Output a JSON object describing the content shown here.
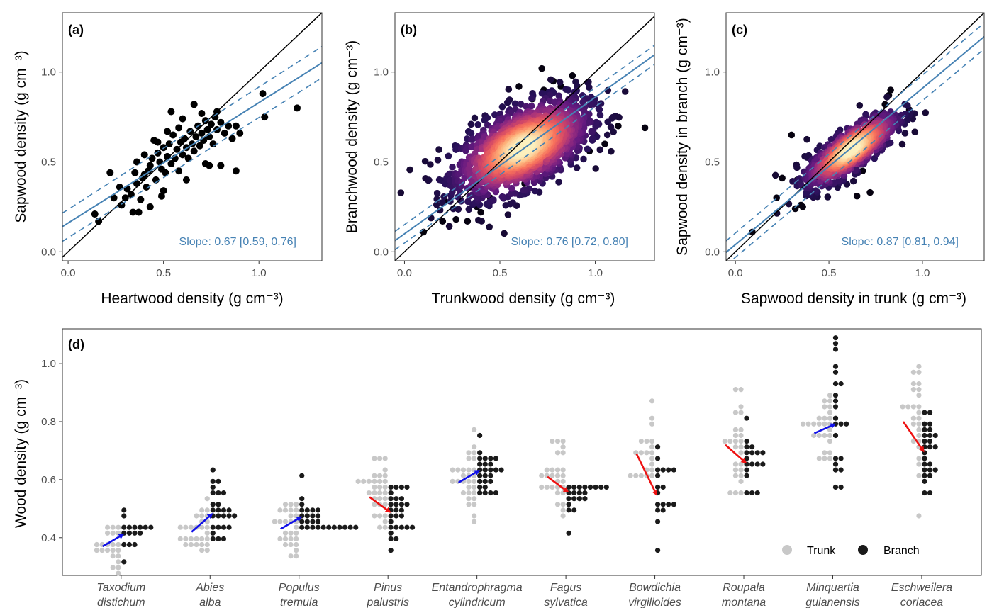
{
  "chart_data": [
    {
      "type": "scatter",
      "panel_label": "(a)",
      "xlabel": "Heartwood density (g cm⁻³)",
      "ylabel": "Sapwood density (g cm⁻³)",
      "xlim": [
        -0.03,
        1.33
      ],
      "ylim": [
        -0.05,
        1.33
      ],
      "xticks": [
        "0.0",
        "0.5",
        "1.0"
      ],
      "yticks": [
        "0.0",
        "0.5",
        "1.0"
      ],
      "annotation": "Slope: 0.67 [0.59, 0.76]",
      "fit": {
        "slope": 0.67,
        "ci": [
          0.59,
          0.76
        ],
        "intercept": 0.16
      },
      "identity_line": true,
      "points": [
        [
          0.16,
          0.17
        ],
        [
          0.27,
          0.36
        ],
        [
          0.3,
          0.3
        ],
        [
          0.31,
          0.35
        ],
        [
          0.33,
          0.32
        ],
        [
          0.35,
          0.44
        ],
        [
          0.36,
          0.38
        ],
        [
          0.38,
          0.29
        ],
        [
          0.39,
          0.41
        ],
        [
          0.4,
          0.43
        ],
        [
          0.41,
          0.36
        ],
        [
          0.42,
          0.45
        ],
        [
          0.43,
          0.48
        ],
        [
          0.44,
          0.52
        ],
        [
          0.45,
          0.62
        ],
        [
          0.46,
          0.4
        ],
        [
          0.47,
          0.55
        ],
        [
          0.48,
          0.5
        ],
        [
          0.49,
          0.46
        ],
        [
          0.5,
          0.58
        ],
        [
          0.51,
          0.44
        ],
        [
          0.52,
          0.53
        ],
        [
          0.53,
          0.6
        ],
        [
          0.54,
          0.49
        ],
        [
          0.55,
          0.65
        ],
        [
          0.56,
          0.52
        ],
        [
          0.57,
          0.57
        ],
        [
          0.58,
          0.45
        ],
        [
          0.59,
          0.61
        ],
        [
          0.6,
          0.54
        ],
        [
          0.61,
          0.63
        ],
        [
          0.62,
          0.58
        ],
        [
          0.63,
          0.52
        ],
        [
          0.64,
          0.67
        ],
        [
          0.65,
          0.6
        ],
        [
          0.66,
          0.56
        ],
        [
          0.67,
          0.64
        ],
        [
          0.68,
          0.7
        ],
        [
          0.69,
          0.59
        ],
        [
          0.7,
          0.66
        ],
        [
          0.71,
          0.62
        ],
        [
          0.72,
          0.73
        ],
        [
          0.73,
          0.68
        ],
        [
          0.74,
          0.64
        ],
        [
          0.75,
          0.71
        ],
        [
          0.76,
          0.6
        ],
        [
          0.77,
          0.75
        ],
        [
          0.78,
          0.68
        ],
        [
          0.8,
          0.72
        ],
        [
          0.82,
          0.66
        ],
        [
          0.84,
          0.7
        ],
        [
          0.86,
          0.63
        ],
        [
          0.88,
          0.7
        ],
        [
          0.9,
          0.66
        ],
        [
          0.54,
          0.78
        ],
        [
          0.66,
          0.82
        ],
        [
          0.78,
          0.78
        ],
        [
          1.02,
          0.88
        ],
        [
          1.03,
          0.75
        ],
        [
          1.2,
          0.8
        ],
        [
          0.22,
          0.44
        ],
        [
          0.24,
          0.3
        ],
        [
          0.28,
          0.26
        ],
        [
          0.34,
          0.22
        ],
        [
          0.37,
          0.22
        ],
        [
          0.49,
          0.31
        ],
        [
          0.5,
          0.34
        ],
        [
          0.72,
          0.49
        ],
        [
          0.74,
          0.48
        ],
        [
          0.8,
          0.48
        ],
        [
          0.88,
          0.45
        ],
        [
          0.62,
          0.4
        ],
        [
          0.43,
          0.25
        ],
        [
          0.14,
          0.21
        ],
        [
          0.58,
          0.69
        ],
        [
          0.6,
          0.74
        ],
        [
          0.7,
          0.77
        ],
        [
          0.52,
          0.67
        ],
        [
          0.47,
          0.61
        ],
        [
          0.4,
          0.54
        ],
        [
          0.36,
          0.5
        ]
      ]
    },
    {
      "type": "scatter",
      "panel_label": "(b)",
      "xlabel": "Trunkwood density (g cm⁻³)",
      "ylabel": "Branchwood density (g cm⁻³)",
      "xlim": [
        -0.05,
        1.31
      ],
      "ylim": [
        -0.05,
        1.33
      ],
      "xticks": [
        "0.0",
        "0.5",
        "1.0"
      ],
      "yticks": [
        "0.0",
        "0.5",
        "1.0"
      ],
      "annotation": "Slope: 0.76 [0.72, 0.80]",
      "fit": {
        "slope": 0.76,
        "ci": [
          0.72,
          0.8
        ],
        "intercept": 0.1
      },
      "identity_line": true,
      "density_colored": true,
      "point_cloud": {
        "center": [
          0.62,
          0.58
        ],
        "spread": [
          0.17,
          0.13
        ],
        "correlation": 0.55,
        "count": 1600
      },
      "outliers": [
        [
          0.1,
          0.11
        ],
        [
          0.2,
          0.17
        ],
        [
          0.21,
          0.28
        ],
        [
          0.27,
          0.18
        ],
        [
          0.33,
          0.17
        ],
        [
          0.38,
          0.25
        ],
        [
          0.4,
          0.22
        ],
        [
          0.45,
          0.3
        ],
        [
          0.63,
          0.38
        ],
        [
          0.67,
          0.85
        ],
        [
          0.73,
          0.9
        ],
        [
          0.78,
          0.95
        ],
        [
          0.82,
          0.92
        ],
        [
          0.72,
          1.02
        ],
        [
          0.88,
          0.98
        ],
        [
          0.88,
          0.78
        ],
        [
          1.0,
          0.65
        ],
        [
          1.12,
          0.7
        ],
        [
          1.26,
          0.69
        ],
        [
          0.97,
          0.56
        ],
        [
          1.05,
          0.6
        ],
        [
          0.9,
          0.62
        ],
        [
          0.6,
          0.92
        ],
        [
          0.85,
          0.7
        ]
      ]
    },
    {
      "type": "scatter",
      "panel_label": "(c)",
      "xlabel": "Sapwood density in trunk (g cm⁻³)",
      "ylabel": "Sapwood density in branch (g cm⁻³)",
      "xlim": [
        -0.05,
        1.33
      ],
      "ylim": [
        -0.05,
        1.33
      ],
      "xticks": [
        "0.0",
        "0.5",
        "1.0"
      ],
      "yticks": [
        "0.0",
        "0.5",
        "1.0"
      ],
      "annotation": "Slope: 0.87 [0.81, 0.94]",
      "fit": {
        "slope": 0.87,
        "ci": [
          0.81,
          0.94
        ],
        "intercept": 0.04
      },
      "identity_line": true,
      "density_colored": true,
      "point_cloud": {
        "center": [
          0.62,
          0.57
        ],
        "spread": [
          0.12,
          0.1
        ],
        "correlation": 0.8,
        "count": 900
      },
      "outliers": [
        [
          0.09,
          0.11
        ],
        [
          0.22,
          0.3
        ],
        [
          0.25,
          0.41
        ],
        [
          0.32,
          0.24
        ],
        [
          0.35,
          0.26
        ],
        [
          0.36,
          0.25
        ],
        [
          0.44,
          0.39
        ],
        [
          0.55,
          0.38
        ],
        [
          0.58,
          0.52
        ],
        [
          0.65,
          0.31
        ],
        [
          0.72,
          0.33
        ],
        [
          0.68,
          0.45
        ],
        [
          0.8,
          0.82
        ],
        [
          0.82,
          0.87
        ],
        [
          0.83,
          0.9
        ],
        [
          0.93,
          0.79
        ],
        [
          0.88,
          0.72
        ],
        [
          0.3,
          0.65
        ],
        [
          0.33,
          0.4
        ],
        [
          0.75,
          0.75
        ]
      ]
    },
    {
      "type": "scatter",
      "panel_label": "(d)",
      "xlabel": "",
      "ylabel": "Wood density (g cm⁻³)",
      "ylim": [
        0.27,
        1.12
      ],
      "yticks": [
        "0.4",
        "0.6",
        "0.8",
        "1.0"
      ],
      "legend": {
        "position": "bottom-right",
        "entries": [
          {
            "name": "Trunk",
            "color": "#c8c8c8"
          },
          {
            "name": "Branch",
            "color": "#1a1a1a"
          }
        ]
      },
      "arrow_colors": {
        "increase": "#1010e8",
        "decrease": "#ee1111"
      },
      "categories": [
        "Taxodium distichum",
        "Abies alba",
        "Populus tremula",
        "Pinus palustris",
        "Entandrophragma cylindricum",
        "Fagus sylvatica",
        "Bowdichia virgilioides",
        "Roupala montana",
        "Minquartia guianensis",
        "Eschweilera coriacea"
      ],
      "species": [
        {
          "genus": "Taxodium",
          "epithet": "distichum",
          "trunk_mean": 0.37,
          "branch_mean": 0.41,
          "trunk_range": [
            0.28,
            0.43
          ],
          "branch_range": [
            0.31,
            0.49
          ],
          "n_trunk": 22,
          "n_branch": 16
        },
        {
          "genus": "Abies",
          "epithet": "alba",
          "trunk_mean": 0.42,
          "branch_mean": 0.48,
          "trunk_range": [
            0.35,
            0.54
          ],
          "branch_range": [
            0.4,
            0.64
          ],
          "n_trunk": 28,
          "n_branch": 26
        },
        {
          "genus": "Populus",
          "epithet": "tremula",
          "trunk_mean": 0.43,
          "branch_mean": 0.47,
          "trunk_range": [
            0.33,
            0.52
          ],
          "branch_range": [
            0.43,
            0.62
          ],
          "n_trunk": 28,
          "n_branch": 26
        },
        {
          "genus": "Pinus",
          "epithet": "palustris",
          "trunk_mean": 0.54,
          "branch_mean": 0.49,
          "trunk_range": [
            0.44,
            0.67
          ],
          "branch_range": [
            0.35,
            0.57
          ],
          "n_trunk": 32,
          "n_branch": 28
        },
        {
          "genus": "Entandrophragma",
          "epithet": "cylindricum",
          "trunk_mean": 0.59,
          "branch_mean": 0.63,
          "trunk_range": [
            0.46,
            0.77
          ],
          "branch_range": [
            0.55,
            0.76
          ],
          "n_trunk": 30,
          "n_branch": 26
        },
        {
          "genus": "Fagus",
          "epithet": "sylvatica",
          "trunk_mean": 0.61,
          "branch_mean": 0.56,
          "trunk_range": [
            0.48,
            0.74
          ],
          "branch_range": [
            0.42,
            0.57
          ],
          "n_trunk": 28,
          "n_branch": 20
        },
        {
          "genus": "Bowdichia",
          "epithet": "virgilioides",
          "trunk_mean": 0.69,
          "branch_mean": 0.55,
          "trunk_range": [
            0.61,
            0.87
          ],
          "branch_range": [
            0.36,
            0.72
          ],
          "n_trunk": 20,
          "n_branch": 18
        },
        {
          "genus": "Roupala",
          "epithet": "montana",
          "trunk_mean": 0.72,
          "branch_mean": 0.66,
          "trunk_range": [
            0.55,
            0.92
          ],
          "branch_range": [
            0.56,
            0.82
          ],
          "n_trunk": 26,
          "n_branch": 18
        },
        {
          "genus": "Minquartia",
          "epithet": "guianensis",
          "trunk_mean": 0.76,
          "branch_mean": 0.79,
          "trunk_range": [
            0.67,
            0.9
          ],
          "branch_range": [
            0.58,
            1.08
          ],
          "n_trunk": 26,
          "n_branch": 22
        },
        {
          "genus": "Eschweilera",
          "epithet": "coriacea",
          "trunk_mean": 0.8,
          "branch_mean": 0.7,
          "trunk_range": [
            0.47,
            0.99
          ],
          "branch_range": [
            0.55,
            0.84
          ],
          "n_trunk": 26,
          "n_branch": 26
        }
      ]
    }
  ]
}
